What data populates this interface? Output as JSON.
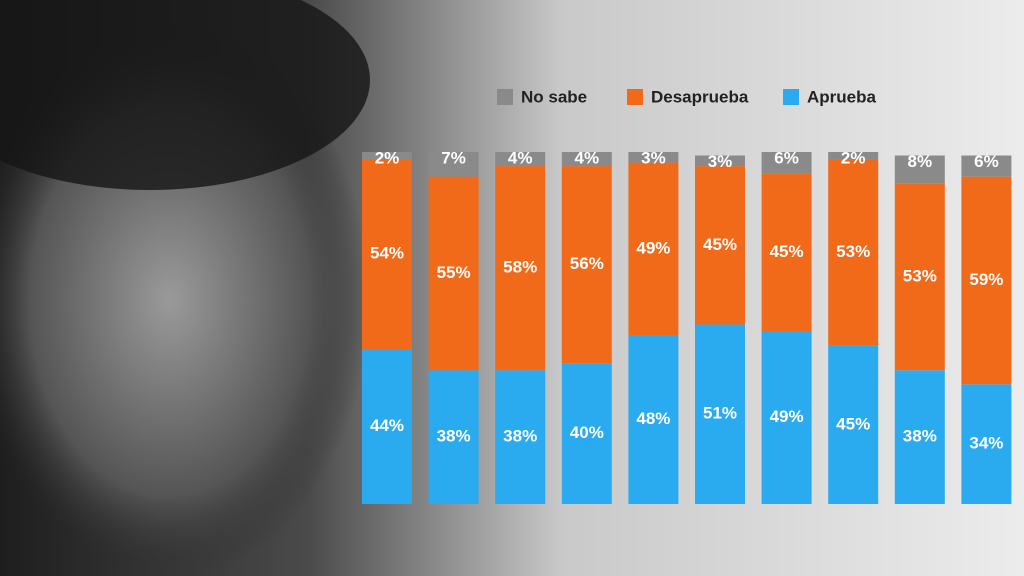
{
  "chart_data": {
    "type": "stacked-bar",
    "series": [
      {
        "name": "No sabe",
        "color": "#8a8a8a",
        "values": [
          2,
          7,
          4,
          4,
          3,
          3,
          6,
          2,
          8,
          6
        ],
        "value_labels": [
          "2%",
          "7%",
          "4%",
          "4%",
          "3%",
          "3%",
          "6%",
          "2%",
          "8%",
          "6%"
        ]
      },
      {
        "name": "Desaprueba",
        "color": "#f06a1a",
        "values": [
          54,
          55,
          58,
          56,
          49,
          45,
          45,
          53,
          53,
          59
        ],
        "value_labels": [
          "54%",
          "55%",
          "58%",
          "56%",
          "49%",
          "45%",
          "45%",
          "53%",
          "53%",
          "59%"
        ]
      },
      {
        "name": "Aprueba",
        "color": "#2aabf0",
        "values": [
          44,
          38,
          38,
          40,
          48,
          51,
          49,
          45,
          38,
          34
        ],
        "value_labels": [
          "44%",
          "38%",
          "38%",
          "40%",
          "48%",
          "51%",
          "49%",
          "45%",
          "38%",
          "34%"
        ]
      }
    ],
    "ylim": [
      0,
      100
    ]
  }
}
